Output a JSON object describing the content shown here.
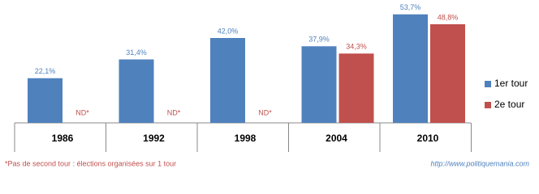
{
  "chart_data": {
    "type": "bar",
    "categories": [
      "1986",
      "1992",
      "1998",
      "2004",
      "2010"
    ],
    "series": [
      {
        "name": "1er tour",
        "color": "#4f81bd",
        "values": [
          22.1,
          31.4,
          42.0,
          37.9,
          53.7
        ],
        "value_labels": [
          "22,1%",
          "31,4%",
          "42,0%",
          "37,9%",
          "53,7%"
        ]
      },
      {
        "name": "2e tour",
        "color": "#c0504d",
        "values": [
          null,
          null,
          null,
          34.3,
          48.8
        ],
        "value_labels": [
          "ND*",
          "ND*",
          "ND*",
          "34,3%",
          "48,8%"
        ]
      }
    ],
    "legend": "right",
    "footnote": "*Pas de second tour : élections organisées sur 1 tour",
    "source": "http://www.politiquemania.com"
  }
}
